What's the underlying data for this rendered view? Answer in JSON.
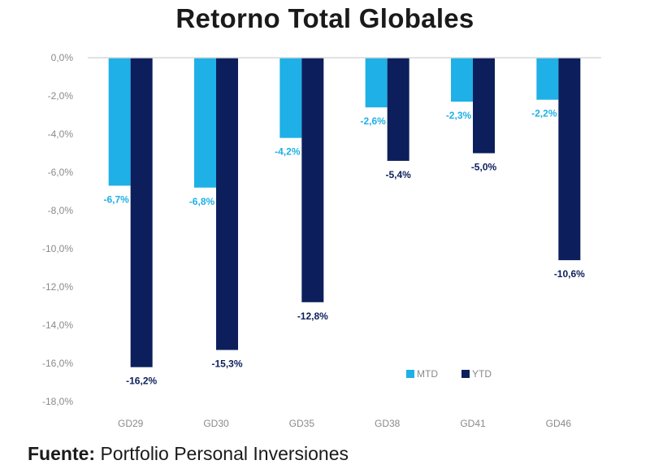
{
  "chart_data": {
    "type": "bar",
    "title": "Retorno Total Globales",
    "categories": [
      "GD29",
      "GD30",
      "GD35",
      "GD38",
      "GD41",
      "GD46"
    ],
    "series": [
      {
        "name": "MTD",
        "color": "#1eb0e6",
        "values": [
          -6.7,
          -6.8,
          -4.2,
          -2.6,
          -2.3,
          -2.2
        ],
        "labels": [
          "-6,7%",
          "-6,8%",
          "-4,2%",
          "-2,6%",
          "-2,3%",
          "-2,2%"
        ]
      },
      {
        "name": "YTD",
        "color": "#0c1f5c",
        "values": [
          -16.2,
          -15.3,
          -12.8,
          -5.4,
          -5.0,
          -10.6
        ],
        "labels": [
          "-16,2%",
          "-15,3%",
          "-12,8%",
          "-5,4%",
          "-5,0%",
          "-10,6%"
        ]
      }
    ],
    "yticks": [
      0,
      -2,
      -4,
      -6,
      -8,
      -10,
      -12,
      -14,
      -16,
      -18
    ],
    "ytick_labels": [
      "0,0%",
      "-2,0%",
      "-4,0%",
      "-6,0%",
      "-8,0%",
      "-10,0%",
      "-12,0%",
      "-14,0%",
      "-16,0%",
      "-18,0%"
    ],
    "ylim": [
      -18,
      0
    ],
    "xlabel": "",
    "ylabel": "",
    "grid": false,
    "legend": "bottom-right"
  },
  "source": {
    "label": "Fuente:",
    "text": "Portfolio Personal Inversiones"
  }
}
